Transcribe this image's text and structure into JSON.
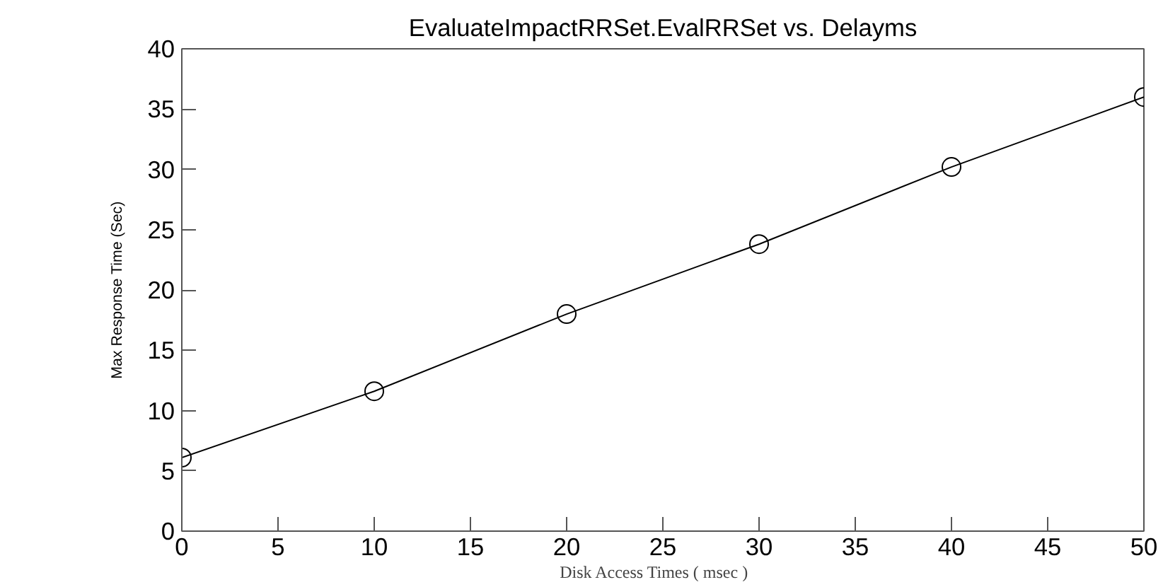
{
  "chart_data": {
    "type": "line",
    "title": "EvaluateImpactRRSet.EvalRRSet vs. Delayms",
    "xlabel": "Disk Access Times (     msec )",
    "ylabel": "Max Response Time (Sec)",
    "x": [
      0,
      10,
      20,
      30,
      40,
      50
    ],
    "series": [
      {
        "color": "#000000",
        "values": [
          6.1,
          11.6,
          18.0,
          23.8,
          30.2,
          36.0
        ]
      }
    ],
    "xlim": [
      0,
      50
    ],
    "ylim": [
      0,
      40
    ],
    "xticks": [
      0,
      5,
      10,
      15,
      20,
      25,
      30,
      35,
      40,
      45,
      50
    ],
    "yticks": [
      0,
      5,
      10,
      15,
      20,
      25,
      30,
      35,
      40
    ],
    "marker": "circle",
    "grid": false
  }
}
